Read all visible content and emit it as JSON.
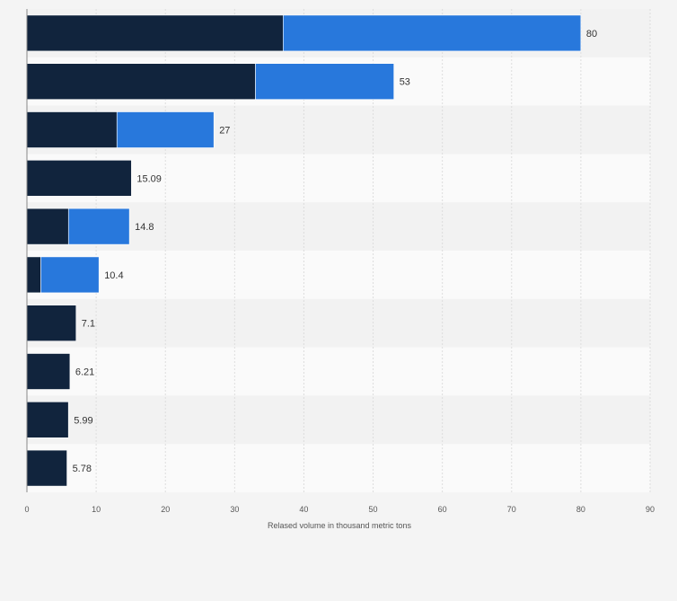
{
  "colors": {
    "background": "#f4f4f4",
    "row_band_light": "#fafafa",
    "row_band_dark": "#f2f2f2",
    "gridline": "#dddddd",
    "series_dark": "#11243d",
    "series_light": "#2878dc"
  },
  "chart_data": {
    "type": "bar",
    "orientation": "horizontal",
    "stacked": true,
    "title": "",
    "xlabel": "Relased volume in thousand metric tons",
    "ylabel": "",
    "xlim": [
      0,
      90
    ],
    "x_ticks": [
      "0",
      "10",
      "20",
      "30",
      "40",
      "50",
      "60",
      "70",
      "80",
      "90"
    ],
    "grid": "vertical",
    "legend": "none",
    "categories": [
      "",
      "",
      "",
      "",
      "",
      "",
      "",
      "",
      "",
      ""
    ],
    "series": [
      {
        "color": "#11243d",
        "values": [
          37,
          33,
          13,
          15.09,
          6,
          2,
          7.1,
          6.21,
          5.99,
          5.78
        ]
      },
      {
        "color": "#2878dc",
        "values": [
          43,
          20,
          14,
          0,
          8.8,
          8.4,
          0,
          0,
          0,
          0
        ]
      }
    ],
    "totals": [
      80,
      53,
      27,
      15.09,
      14.8,
      10.4,
      7.1,
      6.21,
      5.99,
      5.78
    ],
    "total_labels": [
      "80",
      "53",
      "27",
      "15.09",
      "14.8",
      "10.4",
      "7.1",
      "6.21",
      "5.99",
      "5.78"
    ]
  }
}
